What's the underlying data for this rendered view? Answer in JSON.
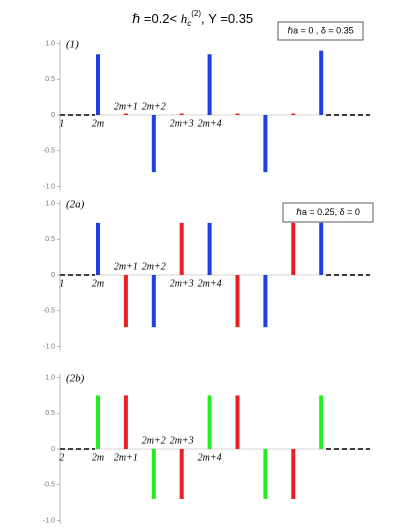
{
  "title": [
    "ℏ =0.2< ",
    "h",
    "c",
    "(2)",
    ",    Υ =0.35"
  ],
  "chart_data": [
    {
      "type": "bar",
      "panel_label": "(1)",
      "annotation": "ℏa = 0 , δ = 0.35",
      "x": [
        0,
        1,
        2,
        3,
        4,
        5,
        6,
        7,
        8
      ],
      "values": [
        0.85,
        0.02,
        -0.8,
        0.02,
        0.85,
        0.02,
        -0.8,
        0.02,
        0.9
      ],
      "colors": [
        "#1f3fe0",
        "#e82020",
        "#1f3fe0",
        "#e82020",
        "#1f3fe0",
        "#e82020",
        "#1f3fe0",
        "#e82020",
        "#1f3fe0"
      ],
      "xticks": [
        {
          "value": -1.3,
          "label": "1"
        },
        {
          "value": 0,
          "label": "2m"
        },
        {
          "value": 1,
          "label": "2m+1"
        },
        {
          "value": 2,
          "label": "2m+2"
        },
        {
          "value": 3,
          "label": "2m+3"
        },
        {
          "value": 4,
          "label": "2m+4"
        }
      ],
      "ylim": [
        -1.05,
        1.05
      ],
      "yticks": [
        {
          "value": -1,
          "label": "-1.0"
        },
        {
          "value": -0.5,
          "label": "-0.5"
        },
        0,
        {
          "value": 0.5,
          "label": "0.5"
        },
        {
          "value": 1,
          "label": "1.0"
        }
      ]
    },
    {
      "type": "bar",
      "panel_label": "(2a)",
      "annotation": "ℏa = 0.25, δ = 0",
      "x": [
        0,
        1,
        2,
        3,
        4,
        5,
        6,
        7,
        8
      ],
      "values": [
        0.73,
        -0.73,
        -0.73,
        0.73,
        0.73,
        -0.73,
        -0.73,
        0.73,
        0.73
      ],
      "colors": [
        "#1f3fe0",
        "#e82020",
        "#1f3fe0",
        "#e82020",
        "#1f3fe0",
        "#e82020",
        "#1f3fe0",
        "#e82020",
        "#1f3fe0"
      ],
      "xticks": [
        {
          "value": -1.3,
          "label": "1"
        },
        {
          "value": 0,
          "label": "2m"
        },
        {
          "value": 1,
          "label": "2m+1"
        },
        {
          "value": 2,
          "label": "2m+2"
        },
        {
          "value": 3,
          "label": "2m+3"
        },
        {
          "value": 4,
          "label": "2m+4"
        }
      ],
      "ylim": [
        -1.05,
        1.05
      ],
      "yticks": [
        {
          "value": -1,
          "label": "-1.0"
        },
        {
          "value": -0.5,
          "label": "-0.5"
        },
        0,
        {
          "value": 0.5,
          "label": "0.5"
        },
        {
          "value": 1,
          "label": "1.0"
        }
      ]
    },
    {
      "type": "bar",
      "panel_label": "(2b)",
      "x": [
        0,
        1,
        2,
        3,
        4,
        5,
        6,
        7,
        8
      ],
      "values": [
        0.75,
        0.75,
        -0.7,
        -0.7,
        0.75,
        0.75,
        -0.7,
        -0.7,
        0.75
      ],
      "colors": [
        "#22ee22",
        "#e82020",
        "#22ee22",
        "#e82020",
        "#22ee22",
        "#e82020",
        "#22ee22",
        "#e82020",
        "#22ee22"
      ],
      "xticks": [
        {
          "value": -1.3,
          "label": "2"
        },
        {
          "value": 0,
          "label": "2m"
        },
        {
          "value": 1,
          "label": "2m+1"
        },
        {
          "value": 2,
          "label": "2m+2"
        },
        {
          "value": 3,
          "label": "2m+3"
        },
        {
          "value": 4,
          "label": "2m+4"
        }
      ],
      "ylim": [
        -1.05,
        1.05
      ],
      "yticks": [
        {
          "value": -1,
          "label": "-1.0"
        },
        {
          "value": -0.5,
          "label": "-0.5"
        },
        0,
        {
          "value": 0.5,
          "label": "0.5"
        },
        {
          "value": 1,
          "label": "1.0"
        }
      ]
    }
  ]
}
